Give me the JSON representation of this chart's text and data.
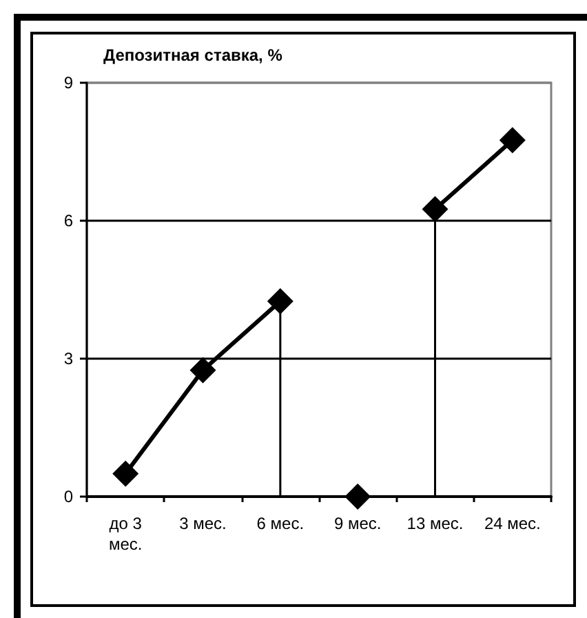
{
  "chart_data": {
    "type": "line",
    "ylabel": "Депозитная ставка, %",
    "categories": [
      "до 3 мес.",
      "3 мес.",
      "6 мес.",
      "9 мес.",
      "13 мес.",
      "24 мес."
    ],
    "series": [
      {
        "color": "#000000",
        "values": [
          0.5,
          2.75,
          4.25,
          null,
          6.25,
          7.75
        ],
        "errors": [
          null,
          null,
          [
            0,
            4.25
          ],
          null,
          [
            0,
            6.25
          ],
          null
        ]
      },
      {
        "type": "scatter",
        "color": "#000000",
        "x": [
          "9 мес."
        ],
        "values": [
          0
        ]
      }
    ],
    "ylim": [
      0,
      9
    ],
    "yticks": [
      0,
      3,
      6,
      9
    ],
    "grid": "y",
    "marker": "diamond"
  }
}
